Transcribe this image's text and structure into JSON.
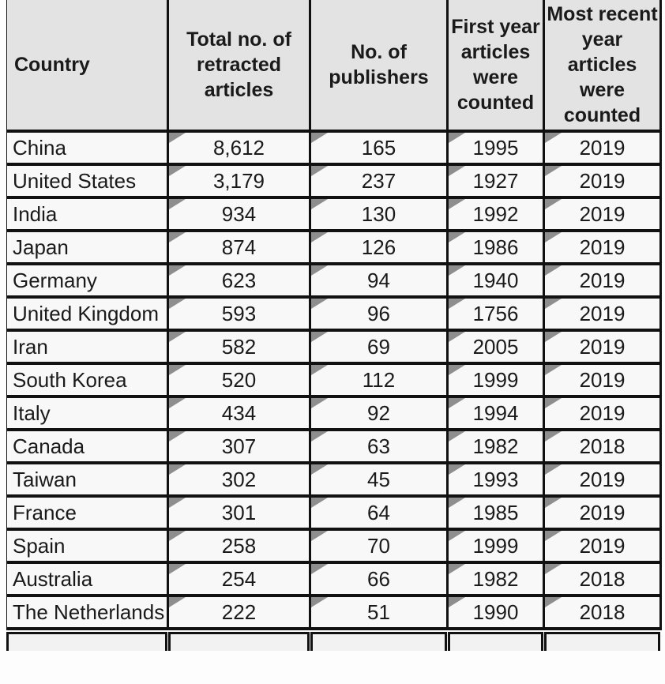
{
  "table": {
    "columns": [
      "Country",
      "Total no. of retracted articles",
      "No. of publishers",
      "First year articles were counted",
      "Most recent year articles were counted"
    ],
    "rows": [
      {
        "country": "China",
        "total": "8,612",
        "publishers": "165",
        "first_year": "1995",
        "recent_year": "2019"
      },
      {
        "country": "United States",
        "total": "3,179",
        "publishers": "237",
        "first_year": "1927",
        "recent_year": "2019"
      },
      {
        "country": "India",
        "total": "934",
        "publishers": "130",
        "first_year": "1992",
        "recent_year": "2019"
      },
      {
        "country": "Japan",
        "total": "874",
        "publishers": "126",
        "first_year": "1986",
        "recent_year": "2019"
      },
      {
        "country": "Germany",
        "total": "623",
        "publishers": "94",
        "first_year": "1940",
        "recent_year": "2019"
      },
      {
        "country": "United Kingdom",
        "total": "593",
        "publishers": "96",
        "first_year": "1756",
        "recent_year": "2019"
      },
      {
        "country": "Iran",
        "total": "582",
        "publishers": "69",
        "first_year": "2005",
        "recent_year": "2019"
      },
      {
        "country": "South Korea",
        "total": "520",
        "publishers": "112",
        "first_year": "1999",
        "recent_year": "2019"
      },
      {
        "country": "Italy",
        "total": "434",
        "publishers": "92",
        "first_year": "1994",
        "recent_year": "2019"
      },
      {
        "country": "Canada",
        "total": "307",
        "publishers": "63",
        "first_year": "1982",
        "recent_year": "2018"
      },
      {
        "country": "Taiwan",
        "total": "302",
        "publishers": "45",
        "first_year": "1993",
        "recent_year": "2019"
      },
      {
        "country": "France",
        "total": "301",
        "publishers": "64",
        "first_year": "1985",
        "recent_year": "2019"
      },
      {
        "country": "Spain",
        "total": "258",
        "publishers": "70",
        "first_year": "1999",
        "recent_year": "2019"
      },
      {
        "country": "Australia",
        "total": "254",
        "publishers": "66",
        "first_year": "1982",
        "recent_year": "2018"
      },
      {
        "country": "The Netherlands",
        "total": "222",
        "publishers": "51",
        "first_year": "1990",
        "recent_year": "2018"
      }
    ]
  },
  "colors": {
    "header_bg": "#e3e3e3",
    "cell_bg": "#f8f8f8",
    "border": "#111111",
    "corner_flag": "#8e8e8e"
  }
}
